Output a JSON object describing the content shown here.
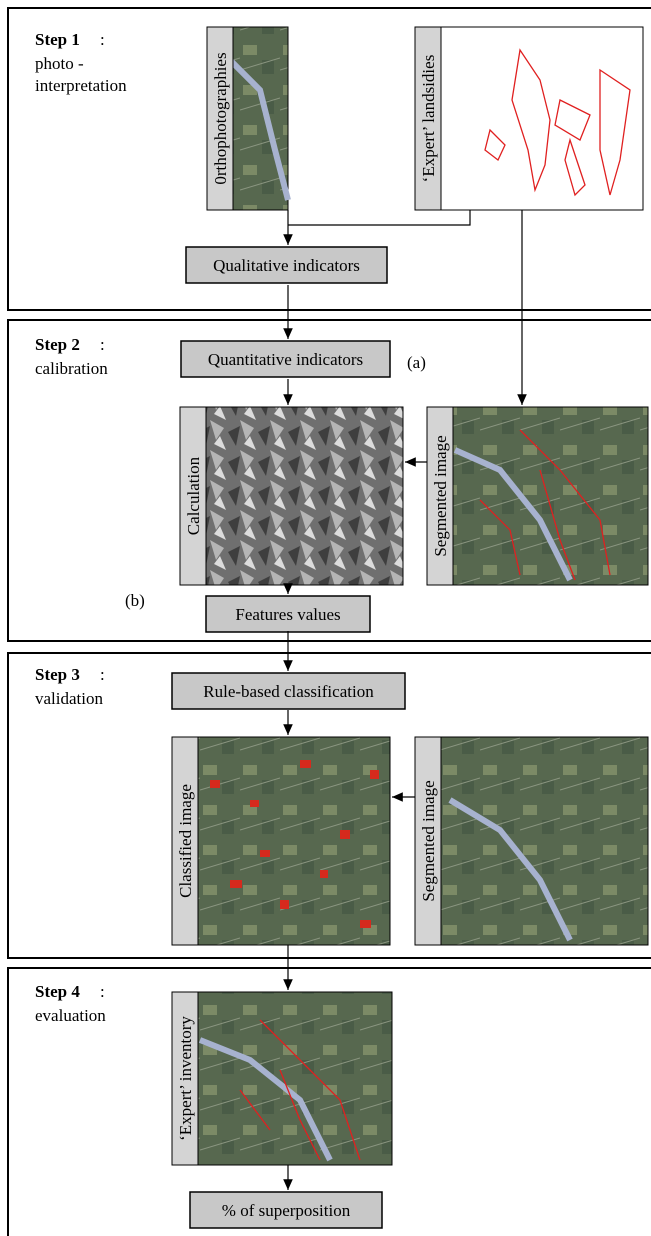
{
  "steps": [
    {
      "title": "Step 1",
      "colon": ":",
      "subtitle_lines": [
        "photo -",
        "interpretation"
      ]
    },
    {
      "title": "Step 2",
      "colon": ":",
      "subtitle_lines": [
        "calibration"
      ]
    },
    {
      "title": "Step 3",
      "colon": ":",
      "subtitle_lines": [
        "validation"
      ]
    },
    {
      "title": "Step 4",
      "colon": ":",
      "subtitle_lines": [
        "evaluation"
      ]
    }
  ],
  "images": [
    "0rthophotographies",
    "‘Expert’ landsidies",
    "Calculation",
    "Segmented image",
    "Classified image",
    "Segmented image",
    "‘Expert’ inventory"
  ],
  "boxes": [
    "Qualitative indicators",
    "Quantitative indicators",
    "Features values",
    "Rule-based classification",
    "% of superposition"
  ],
  "annotations": [
    "(a)",
    "(b)"
  ]
}
